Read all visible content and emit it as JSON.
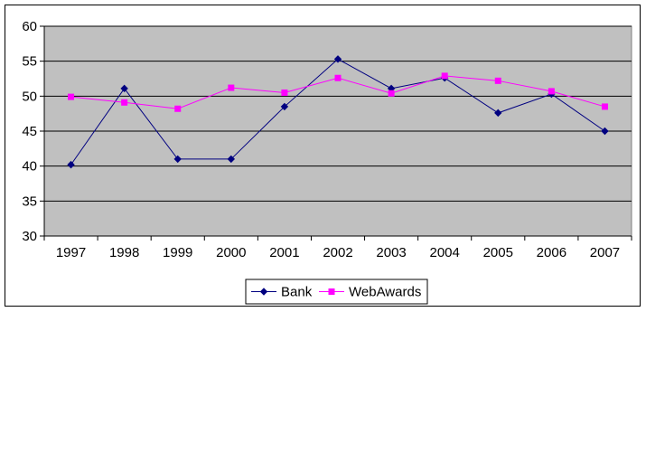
{
  "chart_data": {
    "type": "line",
    "title": "",
    "xlabel": "",
    "ylabel": "",
    "categories": [
      "1997",
      "1998",
      "1999",
      "2000",
      "2001",
      "2002",
      "2003",
      "2004",
      "2005",
      "2006",
      "2007"
    ],
    "ylim": [
      30,
      60
    ],
    "yticks": [
      30,
      35,
      40,
      45,
      50,
      55,
      60
    ],
    "grid": true,
    "legend_position": "bottom",
    "series": [
      {
        "name": "Bank",
        "color": "#000080",
        "marker": "diamond",
        "values": [
          40.2,
          51.1,
          41.0,
          41.0,
          48.5,
          55.3,
          51.1,
          52.6,
          47.6,
          50.3,
          45.0
        ]
      },
      {
        "name": "WebAwards",
        "color": "#FF00FF",
        "marker": "square",
        "values": [
          49.9,
          49.1,
          48.2,
          51.2,
          50.5,
          52.6,
          50.4,
          52.9,
          52.2,
          50.7,
          48.5
        ]
      }
    ],
    "plot_background": "#C0C0C0"
  }
}
